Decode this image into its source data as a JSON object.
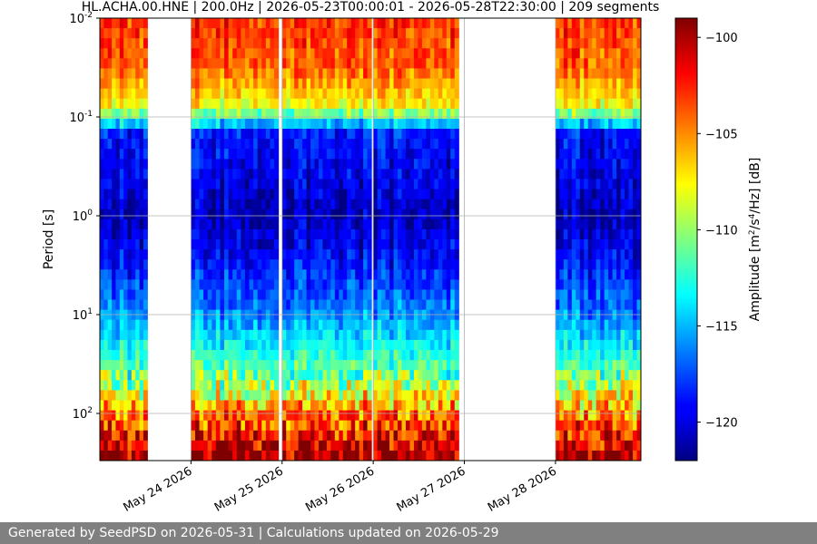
{
  "chart_data": {
    "type": "heatmap",
    "title": "HL.ACHA.00.HNE | 200.0Hz | 2026-05-23T00:00:01 - 2026-05-28T22:30:00 | 209 segments",
    "xlabel": "",
    "ylabel": "Period [s]",
    "x_scale": "time",
    "x_range": [
      "2026-05-23T00:00:01",
      "2026-05-28T22:30:00"
    ],
    "x_ticks": [
      "May 24 2026",
      "May 25 2026",
      "May 26 2026",
      "May 27 2026",
      "May 28 2026"
    ],
    "y_scale": "log",
    "y_range": [
      0.01,
      300
    ],
    "y_ticks": [
      "10^-2",
      "10^-1",
      "10^0",
      "10^1",
      "10^2"
    ],
    "grid": true,
    "colormap": "jet",
    "colorbar": {
      "label": "Amplitude [m2/s4/Hz] [dB]",
      "range": [
        -122,
        -99
      ],
      "ticks": [
        -100,
        -105,
        -110,
        -115,
        -120
      ]
    },
    "data_segments": [
      {
        "start": "2026-05-23T00:00",
        "end": "2026-05-23T12:30"
      },
      {
        "start": "2026-05-24T00:00",
        "end": "2026-05-24T23:00"
      },
      {
        "start": "2026-05-25T00:00",
        "end": "2026-05-25T23:30"
      },
      {
        "start": "2026-05-26T00:00",
        "end": "2026-05-26T22:30"
      },
      {
        "start": "2026-05-28T00:00",
        "end": "2026-05-28T22:30"
      }
    ],
    "amplitude_profile_by_period": [
      {
        "period": 0.01,
        "db": -103
      },
      {
        "period": 0.03,
        "db": -104
      },
      {
        "period": 0.08,
        "db": -108
      },
      {
        "period": 0.15,
        "db": -119
      },
      {
        "period": 0.5,
        "db": -120
      },
      {
        "period": 1.0,
        "db": -121
      },
      {
        "period": 3.0,
        "db": -119
      },
      {
        "period": 10.0,
        "db": -116
      },
      {
        "period": 40.0,
        "db": -111
      },
      {
        "period": 100.0,
        "db": -105
      },
      {
        "period": 300.0,
        "db": -99
      }
    ]
  },
  "footer": {
    "text": "Generated by SeedPSD on 2026-05-31 | Calculations updated on 2026-05-29"
  }
}
